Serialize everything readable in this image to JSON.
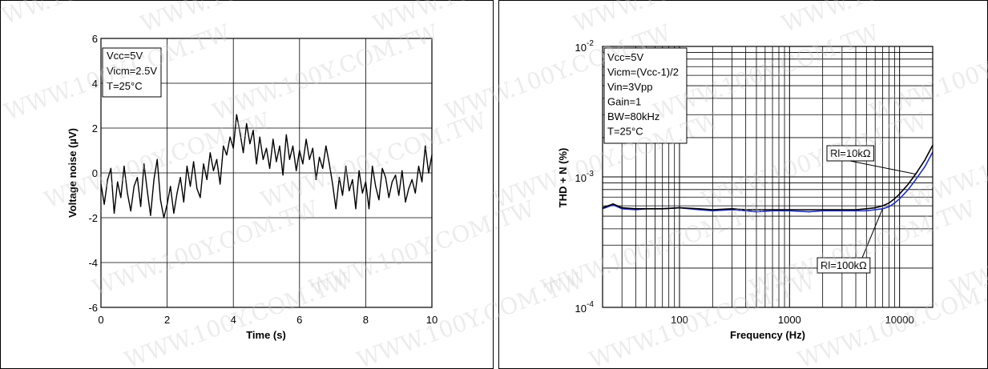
{
  "watermark": "WWW.100Y.COM.TW",
  "chart_data": [
    {
      "type": "line",
      "title": "",
      "xlabel": "Time (s)",
      "ylabel": "Voltage noise (µV)",
      "xlim": [
        0,
        10
      ],
      "ylim": [
        -6,
        6
      ],
      "xticks": [
        0,
        2,
        4,
        6,
        8,
        10
      ],
      "yticks": [
        -6,
        -4,
        -2,
        0,
        2,
        4,
        6
      ],
      "grid": true,
      "annotation": [
        "Vcc=5V",
        "Vicm=2.5V",
        "T=25°C"
      ],
      "series": [
        {
          "color": "#000000",
          "x": [
            0.0,
            0.1,
            0.2,
            0.3,
            0.4,
            0.5,
            0.6,
            0.7,
            0.8,
            0.9,
            1.0,
            1.1,
            1.2,
            1.3,
            1.4,
            1.5,
            1.6,
            1.7,
            1.8,
            1.9,
            2.0,
            2.1,
            2.2,
            2.3,
            2.4,
            2.5,
            2.6,
            2.7,
            2.8,
            2.9,
            3.0,
            3.1,
            3.2,
            3.3,
            3.4,
            3.5,
            3.6,
            3.7,
            3.8,
            3.9,
            4.0,
            4.1,
            4.2,
            4.3,
            4.4,
            4.5,
            4.6,
            4.7,
            4.8,
            4.9,
            5.0,
            5.1,
            5.2,
            5.3,
            5.4,
            5.5,
            5.6,
            5.7,
            5.8,
            5.9,
            6.0,
            6.1,
            6.2,
            6.3,
            6.4,
            6.5,
            6.6,
            6.7,
            6.8,
            6.9,
            7.0,
            7.1,
            7.2,
            7.3,
            7.4,
            7.5,
            7.6,
            7.7,
            7.8,
            7.9,
            8.0,
            8.1,
            8.2,
            8.3,
            8.4,
            8.5,
            8.6,
            8.7,
            8.8,
            8.9,
            9.0,
            9.1,
            9.2,
            9.3,
            9.4,
            9.5,
            9.6,
            9.7,
            9.8,
            9.9,
            10.0
          ],
          "values": [
            -0.5,
            -1.4,
            -0.3,
            0.2,
            -1.8,
            -0.4,
            -1.1,
            0.3,
            -0.9,
            -1.7,
            -0.6,
            -0.2,
            -1.5,
            0.4,
            -0.8,
            -1.9,
            -0.3,
            0.6,
            -1.2,
            -2.0,
            -1.4,
            -0.6,
            -1.8,
            -0.9,
            -0.2,
            -1.3,
            0.3,
            -0.6,
            0.5,
            -0.7,
            -1.1,
            0.4,
            -0.3,
            0.9,
            0.1,
            0.6,
            -0.5,
            1.2,
            0.8,
            1.6,
            1.1,
            2.6,
            1.8,
            0.9,
            2.2,
            1.3,
            1.9,
            0.4,
            1.6,
            0.6,
            1.1,
            0.2,
            1.5,
            0.5,
            1.2,
            -0.1,
            1.7,
            0.6,
            1.2,
            0.1,
            1.0,
            0.4,
            1.5,
            0.6,
            1.1,
            -0.3,
            0.7,
            0.2,
            1.2,
            0.4,
            -0.5,
            -1.6,
            -0.2,
            -1.0,
            0.3,
            -0.8,
            -0.3,
            -1.6,
            0.1,
            -0.9,
            -0.4,
            -1.6,
            0.3,
            -0.6,
            -1.2,
            0.2,
            -0.2,
            -1.1,
            -0.4,
            -0.1,
            -1.0,
            0.1,
            -1.3,
            -0.7,
            -0.3,
            -0.9,
            0.3,
            -0.4,
            1.2,
            0.0,
            0.8
          ]
        }
      ]
    },
    {
      "type": "line",
      "title": "",
      "xlabel": "Frequency (Hz)",
      "ylabel": "THD + N (%)",
      "xscale": "log",
      "yscale": "log",
      "xlim": [
        20,
        20000
      ],
      "ylim": [
        0.0001,
        0.01
      ],
      "xticks": [
        100,
        1000,
        10000
      ],
      "xticklabels": [
        "100",
        "1000",
        "10000"
      ],
      "yticks": [
        0.0001,
        0.001,
        0.01
      ],
      "yticklabels": [
        [
          "10",
          "-4"
        ],
        [
          "10",
          "-3"
        ],
        [
          "10",
          "-2"
        ]
      ],
      "grid": true,
      "annotation": [
        "Vcc=5V",
        "Vicm=(Vcc-1)/2",
        "Vin=3Vpp",
        "Gain=1",
        "BW=80kHz",
        "T=25°C"
      ],
      "series": [
        {
          "name": "Rl=10kΩ",
          "color": "#000000",
          "x": [
            20,
            25,
            30,
            40,
            50,
            70,
            100,
            150,
            200,
            300,
            400,
            500,
            700,
            1000,
            1500,
            2000,
            3000,
            4000,
            5000,
            6000,
            7000,
            8000,
            9000,
            10000,
            12000,
            14000,
            17000,
            20000
          ],
          "values": [
            0.00058,
            0.00062,
            0.00058,
            0.00057,
            0.00057,
            0.00057,
            0.00058,
            0.00057,
            0.00056,
            0.00057,
            0.00056,
            0.00056,
            0.00056,
            0.00056,
            0.00056,
            0.00056,
            0.00056,
            0.00056,
            0.00057,
            0.00058,
            0.0006,
            0.00063,
            0.00068,
            0.00074,
            0.00088,
            0.00105,
            0.00135,
            0.00175
          ]
        },
        {
          "name": "Rl=100kΩ",
          "color": "#1f2fbf",
          "x": [
            20,
            25,
            30,
            40,
            50,
            70,
            100,
            150,
            200,
            300,
            400,
            500,
            700,
            1000,
            1500,
            2000,
            3000,
            4000,
            5000,
            6000,
            7000,
            8000,
            9000,
            10000,
            12000,
            14000,
            17000,
            20000
          ],
          "values": [
            0.00057,
            0.00061,
            0.00057,
            0.00056,
            0.00057,
            0.00057,
            0.00058,
            0.00056,
            0.00055,
            0.00056,
            0.00055,
            0.00054,
            0.00055,
            0.00055,
            0.00054,
            0.00055,
            0.00055,
            0.00055,
            0.00055,
            0.00056,
            0.00057,
            0.00059,
            0.00063,
            0.00068,
            0.0008,
            0.00095,
            0.0012,
            0.00155
          ]
        }
      ]
    }
  ]
}
